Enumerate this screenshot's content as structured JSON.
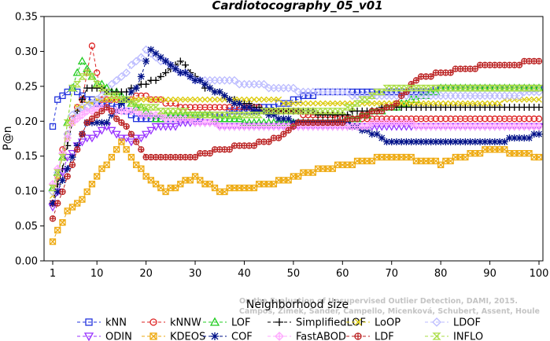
{
  "chart_data": {
    "type": "line",
    "title": "Cardiotocography_05_v01",
    "xlabel": "Neighborhood size",
    "ylabel": "P@n",
    "xlim": [
      1,
      100
    ],
    "ylim": [
      0.0,
      0.35
    ],
    "x_ticks": [
      1,
      10,
      20,
      30,
      40,
      50,
      60,
      70,
      80,
      90,
      100
    ],
    "y_ticks": [
      "0.00",
      "0.05",
      "0.10",
      "0.15",
      "0.20",
      "0.25",
      "0.30",
      "0.35"
    ],
    "grid": false,
    "legend_position": "bottom",
    "watermark": [
      "Campos, Zimek, Sander, Campello, Micenková, Schubert, Assent, Houle",
      "On the Evaluation of Unsupervised Outlier Detection, DAMI, 2015."
    ],
    "series": [
      {
        "name": "kNN",
        "color": "#2233dd",
        "marker": "square",
        "keypoints": [
          [
            1,
            0.195
          ],
          [
            2,
            0.23
          ],
          [
            5,
            0.25
          ],
          [
            8,
            0.23
          ],
          [
            15,
            0.22
          ],
          [
            18,
            0.205
          ],
          [
            30,
            0.205
          ],
          [
            45,
            0.22
          ],
          [
            55,
            0.24
          ],
          [
            70,
            0.24
          ],
          [
            88,
            0.25
          ],
          [
            100,
            0.25
          ]
        ]
      },
      {
        "name": "kNNW",
        "color": "#dd2222",
        "marker": "circle",
        "keypoints": [
          [
            1,
            0.08
          ],
          [
            3,
            0.16
          ],
          [
            5,
            0.205
          ],
          [
            7,
            0.23
          ],
          [
            9,
            0.31
          ],
          [
            11,
            0.23
          ],
          [
            20,
            0.235
          ],
          [
            28,
            0.22
          ],
          [
            40,
            0.22
          ],
          [
            60,
            0.205
          ],
          [
            70,
            0.205
          ],
          [
            100,
            0.205
          ]
        ]
      },
      {
        "name": "LOF",
        "color": "#22cc22",
        "marker": "triangle",
        "keypoints": [
          [
            1,
            0.105
          ],
          [
            3,
            0.15
          ],
          [
            5,
            0.25
          ],
          [
            7,
            0.285
          ],
          [
            10,
            0.255
          ],
          [
            14,
            0.24
          ],
          [
            22,
            0.205
          ],
          [
            30,
            0.21
          ],
          [
            40,
            0.2
          ],
          [
            60,
            0.2
          ],
          [
            70,
            0.22
          ],
          [
            80,
            0.245
          ],
          [
            100,
            0.245
          ]
        ]
      },
      {
        "name": "SimplifiedLOF",
        "color": "#000000",
        "marker": "plus",
        "keypoints": [
          [
            1,
            0.085
          ],
          [
            3,
            0.13
          ],
          [
            5,
            0.2
          ],
          [
            8,
            0.25
          ],
          [
            15,
            0.24
          ],
          [
            22,
            0.26
          ],
          [
            27,
            0.285
          ],
          [
            32,
            0.25
          ],
          [
            38,
            0.23
          ],
          [
            45,
            0.215
          ],
          [
            60,
            0.21
          ],
          [
            70,
            0.22
          ],
          [
            85,
            0.22
          ],
          [
            100,
            0.22
          ]
        ]
      },
      {
        "name": "LoOP",
        "color": "#ddcc11",
        "marker": "x",
        "keypoints": [
          [
            1,
            0.095
          ],
          [
            3,
            0.15
          ],
          [
            6,
            0.22
          ],
          [
            10,
            0.23
          ],
          [
            20,
            0.23
          ],
          [
            40,
            0.23
          ],
          [
            60,
            0.225
          ],
          [
            80,
            0.225
          ],
          [
            100,
            0.23
          ]
        ]
      },
      {
        "name": "LDOF",
        "color": "#bbbbff",
        "marker": "diamond",
        "keypoints": [
          [
            1,
            0.1
          ],
          [
            5,
            0.21
          ],
          [
            10,
            0.23
          ],
          [
            20,
            0.3
          ],
          [
            25,
            0.28
          ],
          [
            30,
            0.26
          ],
          [
            40,
            0.255
          ],
          [
            50,
            0.245
          ],
          [
            60,
            0.24
          ],
          [
            70,
            0.235
          ],
          [
            80,
            0.235
          ],
          [
            100,
            0.24
          ]
        ]
      },
      {
        "name": "ODIN",
        "color": "#9933ff",
        "marker": "triangle-down",
        "keypoints": [
          [
            1,
            0.075
          ],
          [
            4,
            0.15
          ],
          [
            7,
            0.17
          ],
          [
            12,
            0.19
          ],
          [
            17,
            0.17
          ],
          [
            22,
            0.19
          ],
          [
            30,
            0.2
          ],
          [
            40,
            0.19
          ],
          [
            50,
            0.19
          ],
          [
            60,
            0.19
          ],
          [
            70,
            0.19
          ],
          [
            80,
            0.19
          ],
          [
            100,
            0.19
          ]
        ]
      },
      {
        "name": "KDEOS",
        "color": "#eeaa11",
        "marker": "boxx",
        "keypoints": [
          [
            1,
            0.03
          ],
          [
            4,
            0.07
          ],
          [
            7,
            0.09
          ],
          [
            10,
            0.12
          ],
          [
            15,
            0.17
          ],
          [
            20,
            0.12
          ],
          [
            24,
            0.1
          ],
          [
            30,
            0.12
          ],
          [
            35,
            0.1
          ],
          [
            45,
            0.11
          ],
          [
            55,
            0.13
          ],
          [
            62,
            0.14
          ],
          [
            70,
            0.15
          ],
          [
            80,
            0.14
          ],
          [
            90,
            0.16
          ],
          [
            100,
            0.15
          ]
        ]
      },
      {
        "name": "COF",
        "color": "#001188",
        "marker": "asterisk",
        "keypoints": [
          [
            1,
            0.085
          ],
          [
            4,
            0.13
          ],
          [
            8,
            0.2
          ],
          [
            12,
            0.2
          ],
          [
            18,
            0.25
          ],
          [
            21,
            0.3
          ],
          [
            25,
            0.28
          ],
          [
            30,
            0.26
          ],
          [
            35,
            0.24
          ],
          [
            40,
            0.22
          ],
          [
            50,
            0.2
          ],
          [
            60,
            0.2
          ],
          [
            70,
            0.17
          ],
          [
            80,
            0.17
          ],
          [
            90,
            0.17
          ],
          [
            100,
            0.18
          ]
        ]
      },
      {
        "name": "FastABOD",
        "color": "#ffaaff",
        "marker": "plusdiamond",
        "keypoints": [
          [
            1,
            0.11
          ],
          [
            5,
            0.2
          ],
          [
            10,
            0.22
          ],
          [
            20,
            0.21
          ],
          [
            30,
            0.2
          ],
          [
            40,
            0.19
          ],
          [
            50,
            0.19
          ],
          [
            60,
            0.19
          ],
          [
            70,
            0.2
          ],
          [
            80,
            0.19
          ],
          [
            100,
            0.19
          ]
        ]
      },
      {
        "name": "LDF",
        "color": "#bb2222",
        "marker": "circleplus",
        "keypoints": [
          [
            1,
            0.06
          ],
          [
            4,
            0.12
          ],
          [
            8,
            0.2
          ],
          [
            12,
            0.22
          ],
          [
            16,
            0.19
          ],
          [
            20,
            0.15
          ],
          [
            30,
            0.15
          ],
          [
            35,
            0.16
          ],
          [
            45,
            0.17
          ],
          [
            52,
            0.2
          ],
          [
            60,
            0.2
          ],
          [
            70,
            0.22
          ],
          [
            75,
            0.26
          ],
          [
            80,
            0.27
          ],
          [
            90,
            0.28
          ],
          [
            100,
            0.285
          ]
        ]
      },
      {
        "name": "INFLO",
        "color": "#aadd44",
        "marker": "hourglass",
        "keypoints": [
          [
            1,
            0.105
          ],
          [
            3,
            0.15
          ],
          [
            5,
            0.245
          ],
          [
            8,
            0.27
          ],
          [
            12,
            0.24
          ],
          [
            20,
            0.22
          ],
          [
            30,
            0.21
          ],
          [
            40,
            0.21
          ],
          [
            50,
            0.215
          ],
          [
            60,
            0.215
          ],
          [
            70,
            0.25
          ],
          [
            80,
            0.245
          ],
          [
            100,
            0.25
          ]
        ]
      }
    ]
  }
}
